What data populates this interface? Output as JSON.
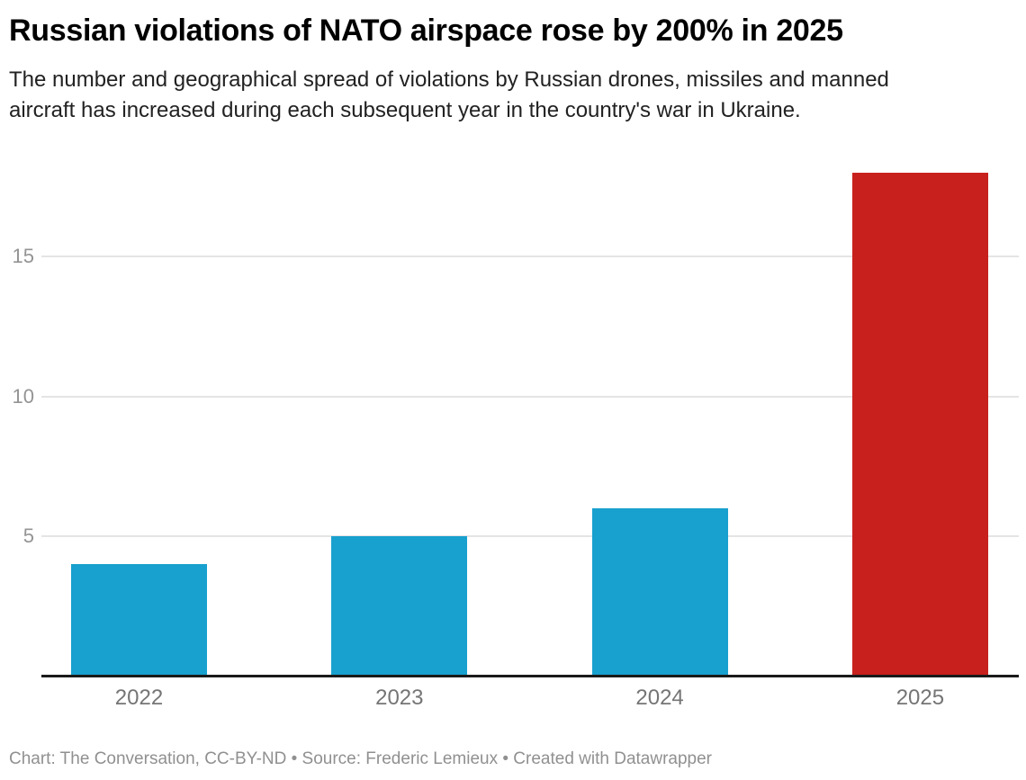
{
  "header": {
    "title": "Russian violations of NATO airspace rose by 200% in 2025",
    "subtitle_lines": [
      "The number and geographical spread of violations by Russian drones, missiles and manned",
      "aircraft has increased during each subsequent year in the country's war in Ukraine."
    ]
  },
  "chart_data": {
    "type": "bar",
    "title": "Russian violations of NATO airspace rose by 200% in 2025",
    "subtitle": "The number and geographical spread of violations by Russian drones, missiles and manned aircraft has increased during each subsequent year in the country's war in Ukraine.",
    "categories": [
      "2022",
      "2023",
      "2024",
      "2025"
    ],
    "values": [
      4,
      5,
      6,
      18
    ],
    "bar_colors": [
      "#18A0CE",
      "#18A0CE",
      "#18A0CE",
      "#C8201D"
    ],
    "highlight_category": "2025",
    "colors": {
      "bar_default": "#18A0CE",
      "bar_highlight": "#C8201D",
      "gridline": "#e4e4e4",
      "axis_line": "#1a1a1a",
      "y_tick_text": "#949494",
      "x_tick_text": "#757575"
    },
    "xlabel": "",
    "ylabel": "",
    "ylim": [
      0,
      18
    ],
    "yticks": [
      5,
      10,
      15
    ],
    "grid": "horizontal-only",
    "legend": "none",
    "value_labels": "none"
  },
  "footer": {
    "credit": "Chart: The Conversation, CC-BY-ND • Source: Frederic Lemieux • Created with Datawrapper"
  }
}
